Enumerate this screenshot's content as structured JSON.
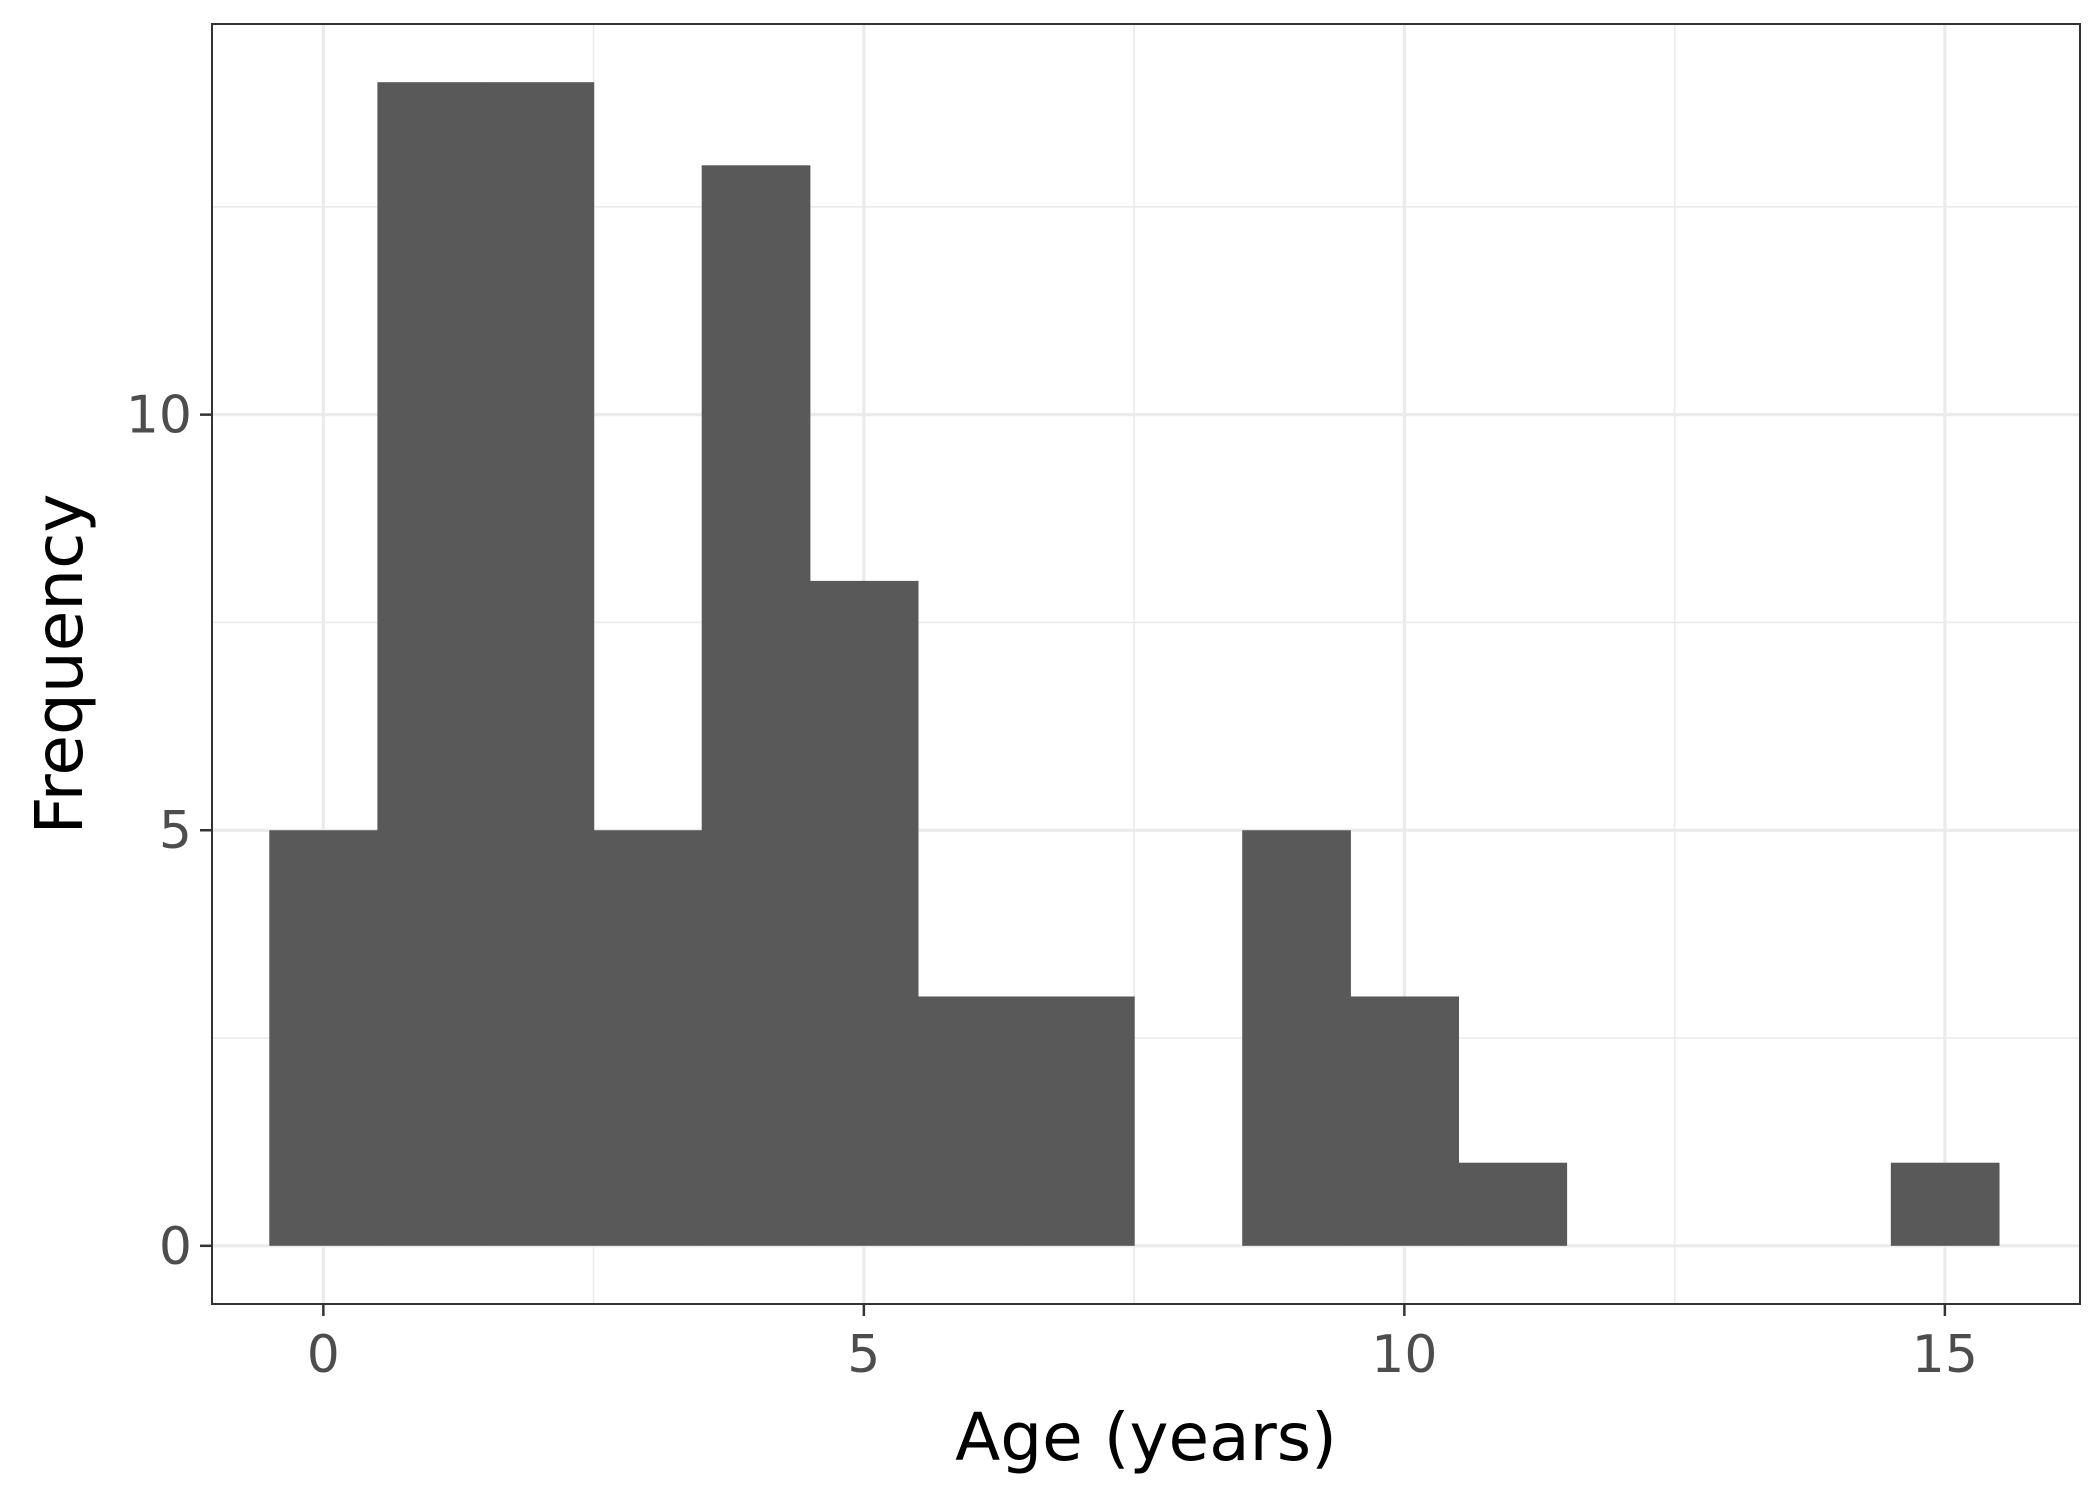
{
  "chart_data": {
    "type": "bar",
    "subtype": "histogram",
    "title": "",
    "xlabel": "Age (years)",
    "ylabel": "Frequency",
    "bin_width": 1,
    "bins": [
      {
        "center": 0,
        "count": 5
      },
      {
        "center": 1,
        "count": 14
      },
      {
        "center": 2,
        "count": 14
      },
      {
        "center": 3,
        "count": 5
      },
      {
        "center": 4,
        "count": 13
      },
      {
        "center": 5,
        "count": 8
      },
      {
        "center": 6,
        "count": 3
      },
      {
        "center": 7,
        "count": 3
      },
      {
        "center": 8,
        "count": 0
      },
      {
        "center": 9,
        "count": 5
      },
      {
        "center": 10,
        "count": 3
      },
      {
        "center": 11,
        "count": 1
      },
      {
        "center": 12,
        "count": 0
      },
      {
        "center": 13,
        "count": 0
      },
      {
        "center": 14,
        "count": 0
      },
      {
        "center": 15,
        "count": 1
      }
    ],
    "xlim": [
      -1.03,
      16.25
    ],
    "ylim": [
      -0.7,
      14.7
    ],
    "x_ticks": [
      0,
      5,
      10,
      15
    ],
    "x_tick_labels": [
      "0",
      "5",
      "10",
      "15"
    ],
    "y_ticks": [
      0,
      5,
      10
    ],
    "y_tick_labels": [
      "0",
      "5",
      "10"
    ],
    "x_minor": [
      2.5,
      7.5,
      12.5
    ],
    "y_minor": [
      2.5,
      7.5,
      12.5
    ],
    "grid": true,
    "legend": "none",
    "colors": {
      "bar": "#595959",
      "grid": "#ebebeb",
      "background": "#ffffff",
      "border": "#333333"
    }
  }
}
